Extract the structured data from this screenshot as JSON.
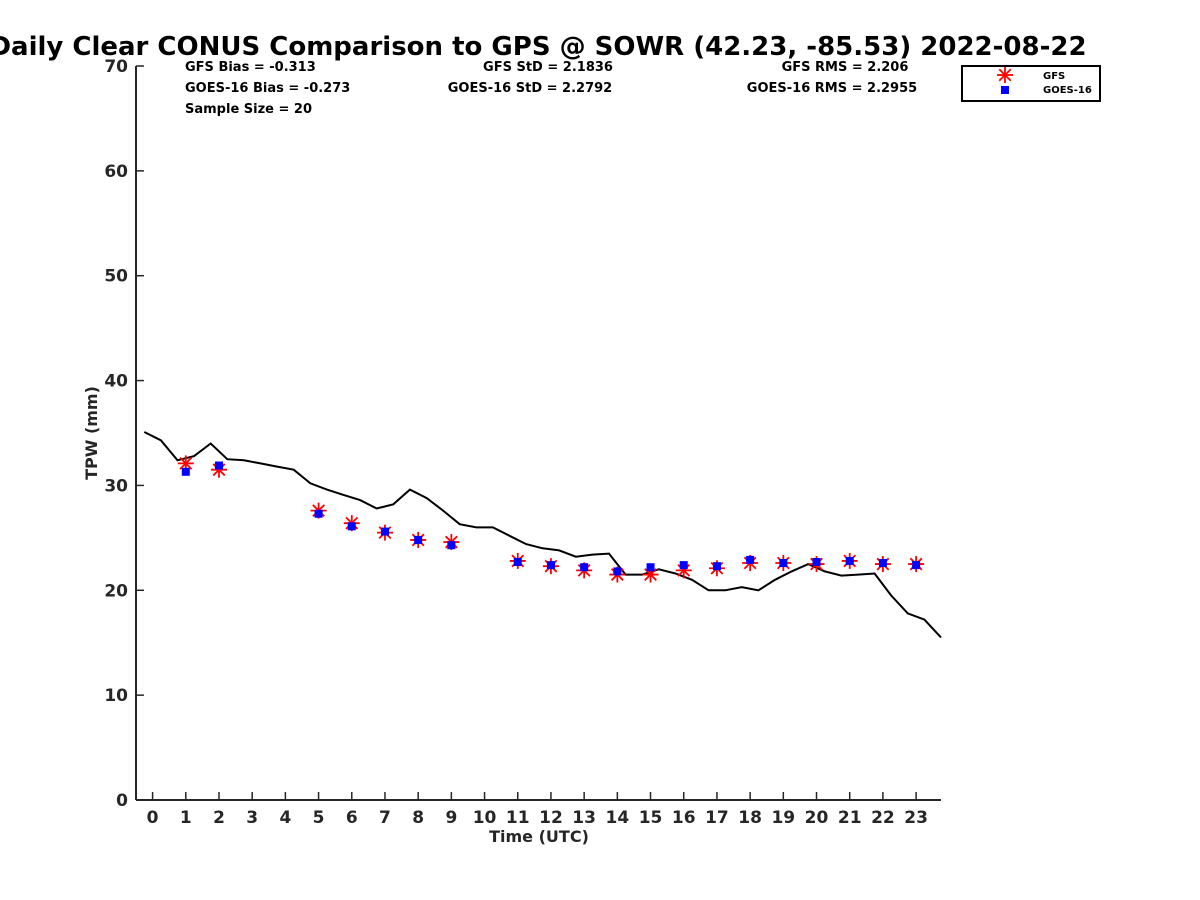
{
  "chart_data": {
    "type": "line",
    "title": "Daily Clear CONUS Comparison to GPS @ SOWR (42.23, -85.53) 2022-08-22",
    "xlabel": "Time (UTC)",
    "ylabel": "TPW (mm)",
    "xlim": [
      -0.5,
      23.75
    ],
    "ylim": [
      0,
      70
    ],
    "xticks": [
      0,
      1,
      2,
      3,
      4,
      5,
      6,
      7,
      8,
      9,
      10,
      11,
      12,
      13,
      14,
      15,
      16,
      17,
      18,
      19,
      20,
      21,
      22,
      23
    ],
    "yticks": [
      0,
      10,
      20,
      30,
      40,
      50,
      60,
      70
    ],
    "stats": {
      "gfs_bias": "GFS Bias = -0.313",
      "goes_bias": "GOES-16 Bias = -0.273",
      "sample_size": "Sample Size = 20",
      "gfs_std": "GFS StD = 2.1836",
      "goes_std": "GOES-16 StD = 2.2792",
      "gfs_rms": "GFS RMS = 2.206",
      "goes_rms": "GOES-16 RMS = 2.2955"
    },
    "legend": [
      "GFS",
      "GOES-16"
    ],
    "series": [
      {
        "name": "GPS",
        "style": "line",
        "color": "#000000",
        "x": [
          -0.25,
          0.25,
          0.75,
          1.25,
          1.75,
          2.25,
          2.75,
          3.25,
          3.75,
          4.25,
          4.75,
          5.25,
          5.75,
          6.25,
          6.75,
          7.25,
          7.75,
          8.25,
          8.75,
          9.25,
          9.75,
          10.25,
          10.75,
          11.25,
          11.75,
          12.25,
          12.75,
          13.25,
          13.75,
          14.25,
          14.75,
          15.25,
          15.75,
          16.25,
          16.75,
          17.25,
          17.75,
          18.25,
          18.75,
          19.25,
          19.75,
          20.25,
          20.75,
          21.25,
          21.75,
          22.25,
          22.75,
          23.25,
          23.75
        ],
        "values": [
          35.1,
          34.3,
          32.4,
          32.8,
          34.0,
          32.5,
          32.4,
          32.1,
          31.8,
          31.5,
          30.2,
          29.6,
          29.1,
          28.6,
          27.8,
          28.2,
          29.6,
          28.8,
          27.6,
          26.3,
          26.0,
          26.0,
          25.2,
          24.4,
          24.0,
          23.8,
          23.2,
          23.4,
          23.5,
          21.5,
          21.5,
          22.0,
          21.6,
          21.0,
          20.0,
          20.0,
          20.3,
          20.0,
          21.0,
          21.8,
          22.5,
          21.8,
          21.4,
          21.5,
          21.6,
          19.5,
          17.8,
          17.2,
          15.5
        ]
      },
      {
        "name": "GFS",
        "style": "asterisk",
        "color": "#ff0000",
        "x": [
          1,
          2,
          5,
          6,
          7,
          8,
          9,
          11,
          12,
          13,
          14,
          15,
          16,
          17,
          18,
          19,
          20,
          21,
          22,
          23
        ],
        "values": [
          32.1,
          31.5,
          27.6,
          26.4,
          25.5,
          24.8,
          24.6,
          22.8,
          22.3,
          21.9,
          21.5,
          21.5,
          21.9,
          22.1,
          22.6,
          22.6,
          22.5,
          22.8,
          22.5,
          22.5
        ]
      },
      {
        "name": "GOES-16",
        "style": "square",
        "color": "#0000ff",
        "x": [
          1,
          2,
          5,
          6,
          7,
          8,
          9,
          11,
          12,
          13,
          14,
          15,
          16,
          17,
          18,
          19,
          20,
          21,
          22,
          23
        ],
        "values": [
          31.3,
          31.9,
          27.3,
          26.1,
          25.6,
          24.8,
          24.3,
          22.7,
          22.4,
          22.2,
          21.8,
          22.2,
          22.4,
          22.3,
          22.9,
          22.6,
          22.7,
          22.8,
          22.6,
          22.4
        ]
      }
    ]
  }
}
